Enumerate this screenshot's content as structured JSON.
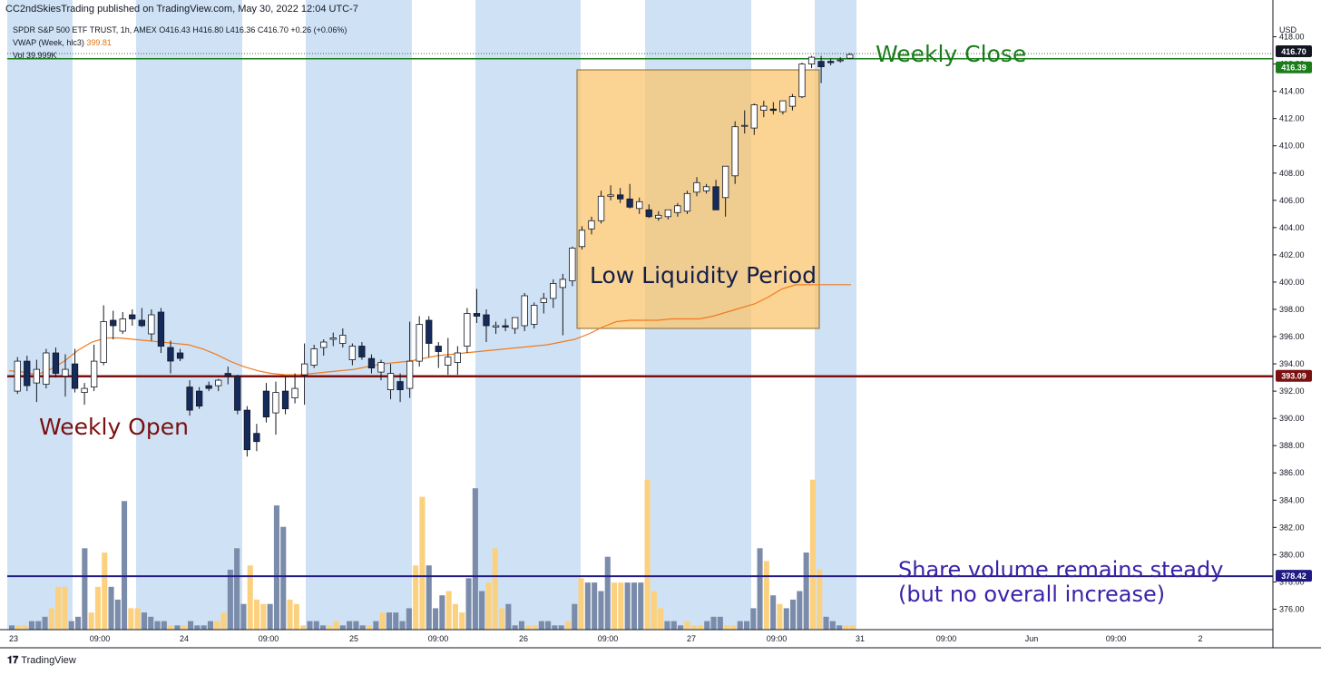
{
  "header": {
    "published": "CC2ndSkiesTrading published on TradingView.com, May 30, 2022 12:04 UTC-7",
    "symbol_line_prefix": "SPDR S&P 500 ETF TRUST, 1h, AMEX",
    "ohlc": "O416.43  H416.80  L416.36  C416.70  +0.26 (+0.06%)",
    "vwap_label": "VWAP (Week, hlc3)",
    "vwap_value": "399.81",
    "vol_label": "Vol",
    "vol_value": "39.999K"
  },
  "footer": {
    "brand": "TradingView"
  },
  "colors": {
    "session_band": "#cfe2f5",
    "candle_up": "#ffffff",
    "candle_down": "#152b5b",
    "wick": "#131722",
    "vol_up": "#fbd17f",
    "vol_down": "#7b8cab",
    "vwap": "#f07b1e",
    "close_line": "#1a7d1a",
    "open_line": "#7a1010",
    "volume_line": "#211a85",
    "box_fill": "#f9c46e",
    "box_border": "#8a6a2a"
  },
  "annotations": {
    "weekly_close": "Weekly Close",
    "weekly_open": "Weekly Open",
    "low_liquidity": "Low Liquidity Period",
    "volume_note_1": "Share volume remains steady",
    "volume_note_2": "(but no overall increase)"
  },
  "chart_data": {
    "type": "candlestick",
    "title": "SPDR S&P 500 ETF TRUST, 1h, AMEX",
    "y_axis_unit": "USD",
    "ylim": [
      374.5,
      419.5
    ],
    "y_ticks": [
      "418.00",
      "416.00",
      "414.00",
      "412.00",
      "410.00",
      "408.00",
      "406.00",
      "404.00",
      "402.00",
      "400.00",
      "398.00",
      "396.00",
      "394.00",
      "392.00",
      "390.00",
      "388.00",
      "386.00",
      "384.00",
      "382.00",
      "380.00",
      "378.00",
      "376.00"
    ],
    "x_tick_labels": [
      "23",
      "09:00",
      "24",
      "09:00",
      "25",
      "09:00",
      "26",
      "09:00",
      "27",
      "09:00",
      "31",
      "09:00",
      "Jun",
      "09:00",
      "2"
    ],
    "price_labels": [
      {
        "label": "416.70",
        "value": 416.7,
        "color": "#131722"
      },
      {
        "label": "416.39",
        "value": 416.39,
        "color": "#1a7d1a"
      },
      {
        "label": "393.09",
        "value": 393.09,
        "color": "#7a1010"
      },
      {
        "label": "378.42",
        "value": 378.42,
        "color": "#211a85"
      }
    ],
    "levels": {
      "weekly_close": 416.39,
      "weekly_open": 393.09,
      "volume_level": 378.42
    },
    "candles": [
      {
        "o": 392,
        "h": 394.5,
        "l": 391.8,
        "c": 394.2
      },
      {
        "o": 394.2,
        "h": 394.6,
        "l": 392,
        "c": 392.4
      },
      {
        "o": 392.6,
        "h": 394.3,
        "l": 391.2,
        "c": 393.6
      },
      {
        "o": 392.5,
        "h": 395.1,
        "l": 392.2,
        "c": 394.8
      },
      {
        "o": 394.8,
        "h": 395.2,
        "l": 393,
        "c": 393.3
      },
      {
        "o": 393.1,
        "h": 394.7,
        "l": 391.6,
        "c": 393.6
      },
      {
        "o": 394,
        "h": 395.1,
        "l": 391.9,
        "c": 392.2
      },
      {
        "o": 391.9,
        "h": 392.6,
        "l": 391,
        "c": 392.2
      },
      {
        "o": 392.3,
        "h": 395.4,
        "l": 392,
        "c": 394.2
      },
      {
        "o": 394.1,
        "h": 398.3,
        "l": 393.9,
        "c": 397.1
      },
      {
        "o": 397.2,
        "h": 397.9,
        "l": 395.8,
        "c": 396.8
      },
      {
        "o": 396.4,
        "h": 397.8,
        "l": 396.2,
        "c": 397.3
      },
      {
        "o": 397.6,
        "h": 398,
        "l": 396.8,
        "c": 397.3
      },
      {
        "o": 397.2,
        "h": 398.1,
        "l": 396.7,
        "c": 396.8
      },
      {
        "o": 396.2,
        "h": 398,
        "l": 395.7,
        "c": 397.6
      },
      {
        "o": 397.8,
        "h": 398.1,
        "l": 394.8,
        "c": 395.3
      },
      {
        "o": 395.2,
        "h": 395.7,
        "l": 393.3,
        "c": 394.2
      },
      {
        "o": 394.8,
        "h": 395.1,
        "l": 394.2,
        "c": 394.4
      },
      {
        "o": 392.3,
        "h": 392.8,
        "l": 390.2,
        "c": 390.6
      },
      {
        "o": 392,
        "h": 392.3,
        "l": 390.7,
        "c": 390.9
      },
      {
        "o": 392.4,
        "h": 392.7,
        "l": 392,
        "c": 392.2
      },
      {
        "o": 392.4,
        "h": 392.9,
        "l": 392,
        "c": 392.8
      },
      {
        "o": 393.3,
        "h": 393.8,
        "l": 392.5,
        "c": 393.1
      },
      {
        "o": 393.1,
        "h": 393.2,
        "l": 390.3,
        "c": 390.6
      },
      {
        "o": 390.6,
        "h": 390.9,
        "l": 387.2,
        "c": 387.7
      },
      {
        "o": 388.9,
        "h": 389.6,
        "l": 387.6,
        "c": 388.3
      },
      {
        "o": 392,
        "h": 392.6,
        "l": 389.7,
        "c": 390.1
      },
      {
        "o": 390.4,
        "h": 392.7,
        "l": 388.8,
        "c": 391.9
      },
      {
        "o": 392,
        "h": 393.1,
        "l": 390.3,
        "c": 390.7
      },
      {
        "o": 391.5,
        "h": 393.3,
        "l": 391.1,
        "c": 392.2
      },
      {
        "o": 393.2,
        "h": 395.5,
        "l": 391,
        "c": 394
      },
      {
        "o": 393.9,
        "h": 395.4,
        "l": 393.7,
        "c": 395.1
      },
      {
        "o": 395.2,
        "h": 395.8,
        "l": 394.6,
        "c": 395.6
      },
      {
        "o": 395.8,
        "h": 396.3,
        "l": 395.3,
        "c": 395.9
      },
      {
        "o": 395.5,
        "h": 396.6,
        "l": 395.2,
        "c": 396.1
      },
      {
        "o": 394.3,
        "h": 395.5,
        "l": 393.9,
        "c": 395.3
      },
      {
        "o": 395.3,
        "h": 395.6,
        "l": 394.3,
        "c": 394.5
      },
      {
        "o": 394.4,
        "h": 394.7,
        "l": 393.3,
        "c": 393.7
      },
      {
        "o": 393.4,
        "h": 394.3,
        "l": 392.8,
        "c": 394.1
      },
      {
        "o": 392.1,
        "h": 394,
        "l": 391.4,
        "c": 393.3
      },
      {
        "o": 392.7,
        "h": 393.3,
        "l": 391.2,
        "c": 392.1
      },
      {
        "o": 392.2,
        "h": 397.1,
        "l": 391.5,
        "c": 394.2
      },
      {
        "o": 394.2,
        "h": 397.5,
        "l": 393.8,
        "c": 396.9
      },
      {
        "o": 397.2,
        "h": 397.5,
        "l": 394.5,
        "c": 395.5
      },
      {
        "o": 395.3,
        "h": 395.6,
        "l": 393.7,
        "c": 394.9
      },
      {
        "o": 393.9,
        "h": 395.9,
        "l": 393.2,
        "c": 394.5
      },
      {
        "o": 394.1,
        "h": 395.3,
        "l": 393.2,
        "c": 394.8
      },
      {
        "o": 395.3,
        "h": 398.1,
        "l": 394.8,
        "c": 397.7
      },
      {
        "o": 397.7,
        "h": 399.5,
        "l": 397,
        "c": 397.5
      },
      {
        "o": 397.6,
        "h": 398,
        "l": 395.6,
        "c": 396.8
      },
      {
        "o": 396.7,
        "h": 397.1,
        "l": 396.2,
        "c": 396.8
      },
      {
        "o": 396.8,
        "h": 397.3,
        "l": 396.4,
        "c": 396.7
      },
      {
        "o": 396.6,
        "h": 397.4,
        "l": 396.2,
        "c": 397.4
      },
      {
        "o": 396.8,
        "h": 399.2,
        "l": 396.4,
        "c": 399
      },
      {
        "o": 396.9,
        "h": 398.5,
        "l": 396.6,
        "c": 398.3
      },
      {
        "o": 398.5,
        "h": 399.2,
        "l": 397.7,
        "c": 398.8
      },
      {
        "o": 398.8,
        "h": 400.2,
        "l": 398.1,
        "c": 399.9
      },
      {
        "o": 399.6,
        "h": 400.6,
        "l": 396.1,
        "c": 400.2
      },
      {
        "o": 400.1,
        "h": 402.6,
        "l": 399.7,
        "c": 402.5
      },
      {
        "o": 402.6,
        "h": 404.1,
        "l": 402.4,
        "c": 403.8
      },
      {
        "o": 403.9,
        "h": 404.8,
        "l": 403.5,
        "c": 404.5
      },
      {
        "o": 404.5,
        "h": 406.7,
        "l": 404.3,
        "c": 406.3
      },
      {
        "o": 406.3,
        "h": 407.1,
        "l": 406,
        "c": 406.4
      },
      {
        "o": 406.4,
        "h": 406.9,
        "l": 405.8,
        "c": 406.1
      },
      {
        "o": 406.1,
        "h": 407.2,
        "l": 405.4,
        "c": 405.5
      },
      {
        "o": 405.4,
        "h": 406.2,
        "l": 405,
        "c": 405.9
      },
      {
        "o": 405.3,
        "h": 405.7,
        "l": 404.7,
        "c": 404.8
      },
      {
        "o": 404.7,
        "h": 405.2,
        "l": 404.5,
        "c": 404.9
      },
      {
        "o": 404.8,
        "h": 405.3,
        "l": 404.6,
        "c": 405.3
      },
      {
        "o": 405.1,
        "h": 405.8,
        "l": 404.8,
        "c": 405.6
      },
      {
        "o": 405.2,
        "h": 406.7,
        "l": 405,
        "c": 406.5
      },
      {
        "o": 406.6,
        "h": 407.7,
        "l": 406.3,
        "c": 407.3
      },
      {
        "o": 406.7,
        "h": 407.2,
        "l": 406.5,
        "c": 407
      },
      {
        "o": 407,
        "h": 407.5,
        "l": 405.3,
        "c": 405.3
      },
      {
        "o": 406.2,
        "h": 408.5,
        "l": 404.8,
        "c": 408.5
      },
      {
        "o": 407.8,
        "h": 411.8,
        "l": 407.2,
        "c": 411.4
      },
      {
        "o": 411.5,
        "h": 412.6,
        "l": 410.9,
        "c": 411.5
      },
      {
        "o": 411.3,
        "h": 413.1,
        "l": 410.8,
        "c": 413
      },
      {
        "o": 412.6,
        "h": 413.3,
        "l": 412.1,
        "c": 412.9
      },
      {
        "o": 412.7,
        "h": 413.2,
        "l": 412.3,
        "c": 412.6
      },
      {
        "o": 412.5,
        "h": 413.2,
        "l": 412.3,
        "c": 413.3
      },
      {
        "o": 412.9,
        "h": 413.8,
        "l": 412.6,
        "c": 413.6
      },
      {
        "o": 413.6,
        "h": 416.1,
        "l": 413.5,
        "c": 416
      },
      {
        "o": 416,
        "h": 416.6,
        "l": 415.7,
        "c": 416.5
      },
      {
        "o": 416.2,
        "h": 416.6,
        "l": 414.6,
        "c": 415.8
      },
      {
        "o": 416.2,
        "h": 416.4,
        "l": 415.9,
        "c": 416.1
      },
      {
        "o": 416.3,
        "h": 416.5,
        "l": 416.1,
        "c": 416.3
      },
      {
        "o": 416.43,
        "h": 416.8,
        "l": 416.36,
        "c": 416.7
      }
    ],
    "volume_bars_k": [
      1,
      1,
      1,
      2,
      2,
      3,
      5,
      10,
      10,
      2,
      3,
      19,
      4,
      10,
      18,
      10,
      7,
      30,
      5,
      5,
      4,
      3,
      2,
      2,
      1,
      1,
      1,
      2,
      1,
      1,
      2,
      2,
      4,
      14,
      19,
      6,
      15,
      7,
      6,
      6,
      29,
      24,
      7,
      6,
      1,
      2,
      2,
      1,
      1,
      2,
      1,
      2,
      2,
      1,
      1,
      2,
      4,
      4,
      4,
      2,
      5,
      15,
      31,
      15,
      5,
      8,
      9,
      6,
      4,
      12,
      33,
      9,
      11,
      19,
      5,
      6,
      1,
      2,
      1,
      1,
      2,
      2,
      1,
      1,
      2,
      6,
      12,
      11,
      11,
      9,
      17,
      11,
      11,
      11,
      11,
      11,
      35,
      9,
      5,
      2,
      2,
      1,
      2,
      1,
      1,
      2,
      3,
      3,
      1,
      1,
      2,
      2,
      5,
      19,
      16,
      8,
      6,
      5,
      7,
      9,
      18,
      35,
      14,
      3,
      2,
      1,
      1,
      1
    ],
    "vwap": [
      393.5,
      393.4,
      393.2,
      393.6,
      394.2,
      395.0,
      395.6,
      395.9,
      395.9,
      395.8,
      395.7,
      395.6,
      395.5,
      395.4,
      395.1,
      394.7,
      394.2,
      393.8,
      393.5,
      393.3,
      393.2,
      393.2,
      393.3,
      393.4,
      393.5,
      393.6,
      393.8,
      394.0,
      394.1,
      394.2,
      394.4,
      394.6,
      394.7,
      394.8,
      394.9,
      395.0,
      395.1,
      395.2,
      395.3,
      395.4,
      395.6,
      395.8,
      396.2,
      396.7,
      397.1,
      397.2,
      397.2,
      397.2,
      397.3,
      397.3,
      397.3,
      397.5,
      397.8,
      398.1,
      398.4,
      398.9,
      399.5,
      399.8,
      399.81,
      399.81,
      399.81,
      399.81
    ]
  }
}
